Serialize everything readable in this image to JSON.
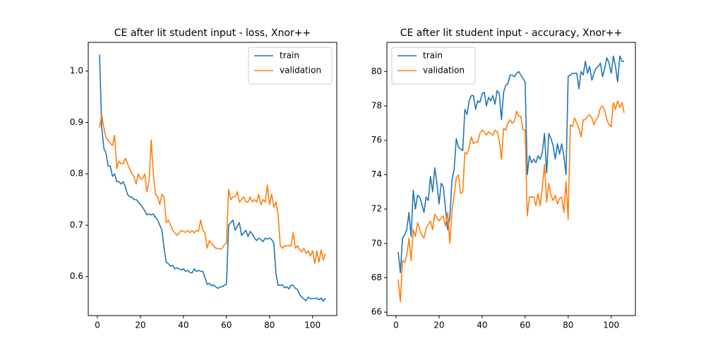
{
  "chart_data": [
    {
      "type": "line",
      "title": "CE after lit student input - loss, Xnor++",
      "legend": "upper right",
      "x": [
        1,
        2,
        3,
        4,
        5,
        6,
        7,
        8,
        9,
        10,
        11,
        12,
        13,
        14,
        15,
        16,
        17,
        18,
        19,
        20,
        21,
        22,
        23,
        24,
        25,
        26,
        27,
        28,
        29,
        30,
        31,
        32,
        33,
        34,
        35,
        36,
        37,
        38,
        39,
        40,
        41,
        42,
        43,
        44,
        45,
        46,
        47,
        48,
        49,
        50,
        51,
        52,
        53,
        54,
        55,
        56,
        57,
        58,
        59,
        60,
        61,
        62,
        63,
        64,
        65,
        66,
        67,
        68,
        69,
        70,
        71,
        72,
        73,
        74,
        75,
        76,
        77,
        78,
        79,
        80,
        81,
        82,
        83,
        84,
        85,
        86,
        87,
        88,
        89,
        90,
        91,
        92,
        93,
        94,
        95,
        96,
        97,
        98,
        99,
        100,
        101,
        102,
        103,
        104,
        105,
        106
      ],
      "series": [
        {
          "name": "train",
          "color": "#1f77b4",
          "values": [
            1.032,
            0.89,
            0.85,
            0.84,
            0.815,
            0.815,
            0.795,
            0.8,
            0.785,
            0.785,
            0.78,
            0.785,
            0.775,
            0.76,
            0.755,
            0.755,
            0.75,
            0.75,
            0.745,
            0.74,
            0.735,
            0.728,
            0.72,
            0.722,
            0.72,
            0.722,
            0.715,
            0.71,
            0.7,
            0.69,
            0.655,
            0.628,
            0.625,
            0.62,
            0.622,
            0.615,
            0.617,
            0.615,
            0.613,
            0.615,
            0.61,
            0.612,
            0.608,
            0.607,
            0.615,
            0.61,
            0.612,
            0.61,
            0.61,
            0.598,
            0.585,
            0.587,
            0.582,
            0.584,
            0.58,
            0.577,
            0.58,
            0.58,
            0.583,
            0.585,
            0.7,
            0.705,
            0.71,
            0.69,
            0.698,
            0.705,
            0.68,
            0.685,
            0.69,
            0.678,
            0.688,
            0.683,
            0.675,
            0.67,
            0.675,
            0.672,
            0.668,
            0.675,
            0.673,
            0.675,
            0.672,
            0.665,
            0.605,
            0.583,
            0.583,
            0.584,
            0.578,
            0.58,
            0.576,
            0.583,
            0.583,
            0.577,
            0.575,
            0.565,
            0.56,
            0.556,
            0.553,
            0.56,
            0.557,
            0.557,
            0.557,
            0.558,
            0.555,
            0.558,
            0.552,
            0.558
          ]
        },
        {
          "name": "validation",
          "color": "#ff7f0e",
          "values": [
            0.89,
            0.915,
            0.89,
            0.87,
            0.865,
            0.86,
            0.855,
            0.875,
            0.81,
            0.825,
            0.82,
            0.82,
            0.83,
            0.82,
            0.81,
            0.8,
            0.795,
            0.78,
            0.8,
            0.79,
            0.79,
            0.8,
            0.765,
            0.785,
            0.866,
            0.8,
            0.76,
            0.755,
            0.74,
            0.76,
            0.755,
            0.705,
            0.71,
            0.7,
            0.69,
            0.685,
            0.68,
            0.685,
            0.69,
            0.688,
            0.686,
            0.69,
            0.685,
            0.69,
            0.685,
            0.69,
            0.688,
            0.71,
            0.69,
            0.685,
            0.655,
            0.67,
            0.665,
            0.66,
            0.655,
            0.655,
            0.653,
            0.655,
            0.662,
            0.665,
            0.77,
            0.75,
            0.755,
            0.755,
            0.765,
            0.745,
            0.75,
            0.755,
            0.745,
            0.745,
            0.755,
            0.745,
            0.75,
            0.745,
            0.76,
            0.74,
            0.75,
            0.745,
            0.778,
            0.74,
            0.76,
            0.735,
            0.745,
            0.72,
            0.66,
            0.655,
            0.66,
            0.66,
            0.66,
            0.66,
            0.685,
            0.655,
            0.66,
            0.652,
            0.648,
            0.655,
            0.645,
            0.65,
            0.64,
            0.65,
            0.625,
            0.65,
            0.628,
            0.652,
            0.632,
            0.645
          ]
        }
      ],
      "xlim": [
        -4.25,
        111.25
      ],
      "ylim": [
        0.524,
        1.056
      ],
      "xticks": [
        0,
        20,
        40,
        60,
        80,
        100
      ],
      "yticks": [
        0.6,
        0.7,
        0.8,
        0.9,
        {
          "value": 1.0,
          "label": "1.0"
        }
      ]
    },
    {
      "type": "line",
      "title": "CE after lit student input - accuracy, Xnor++",
      "legend": "upper left",
      "x": [
        1,
        2,
        3,
        4,
        5,
        6,
        7,
        8,
        9,
        10,
        11,
        12,
        13,
        14,
        15,
        16,
        17,
        18,
        19,
        20,
        21,
        22,
        23,
        24,
        25,
        26,
        27,
        28,
        29,
        30,
        31,
        32,
        33,
        34,
        35,
        36,
        37,
        38,
        39,
        40,
        41,
        42,
        43,
        44,
        45,
        46,
        47,
        48,
        49,
        50,
        51,
        52,
        53,
        54,
        55,
        56,
        57,
        58,
        59,
        60,
        61,
        62,
        63,
        64,
        65,
        66,
        67,
        68,
        69,
        70,
        71,
        72,
        73,
        74,
        75,
        76,
        77,
        78,
        79,
        80,
        81,
        82,
        83,
        84,
        85,
        86,
        87,
        88,
        89,
        90,
        91,
        92,
        93,
        94,
        95,
        96,
        97,
        98,
        99,
        100,
        101,
        102,
        103,
        104,
        105,
        106
      ],
      "series": [
        {
          "name": "train",
          "color": "#1f77b4",
          "values": [
            69.5,
            68.3,
            70.3,
            70.5,
            70.8,
            71.8,
            70.4,
            73.1,
            72.0,
            72.8,
            72.7,
            72.3,
            71.8,
            72.7,
            72.5,
            73.9,
            73.0,
            74.4,
            73.5,
            72.3,
            73.5,
            73.3,
            72.0,
            70.8,
            71.5,
            73.7,
            74.3,
            76.1,
            75.6,
            75.5,
            75.4,
            77.8,
            77.5,
            78.3,
            78.6,
            78.6,
            77.8,
            78.3,
            78.2,
            78.7,
            78.8,
            78.0,
            78.5,
            78.3,
            78.6,
            78.1,
            78.9,
            78.7,
            77.2,
            78.8,
            79.2,
            79.3,
            79.8,
            79.8,
            79.7,
            79.9,
            80.0,
            79.8,
            79.6,
            79.4,
            74.0,
            75.1,
            74.7,
            74.9,
            74.7,
            75.1,
            74.9,
            75.3,
            76.4,
            74.1,
            76.4,
            76.1,
            75.7,
            74.9,
            75.8,
            75.2,
            75.8,
            75.1,
            74.0,
            79.7,
            79.8,
            79.9,
            79.9,
            79.9,
            79.0,
            80.0,
            79.8,
            80.6,
            79.9,
            80.3,
            79.5,
            79.9,
            80.2,
            80.3,
            80.5,
            79.7,
            80.2,
            80.8,
            80.5,
            79.9,
            80.9,
            80.3,
            79.4,
            80.9,
            80.6,
            80.6
          ]
        },
        {
          "name": "validation",
          "color": "#ff7f0e",
          "values": [
            67.9,
            66.6,
            69.0,
            68.9,
            69.3,
            70.3,
            69.0,
            70.8,
            70.4,
            71.2,
            70.8,
            70.5,
            70.3,
            70.9,
            71.1,
            71.3,
            70.8,
            71.7,
            71.5,
            71.3,
            71.5,
            71.6,
            71.0,
            71.8,
            70.0,
            71.9,
            72.8,
            73.8,
            74.0,
            72.9,
            73.0,
            75.3,
            75.2,
            75.6,
            76.2,
            75.8,
            75.9,
            75.9,
            76.4,
            76.6,
            76.5,
            76.3,
            76.5,
            76.4,
            76.3,
            76.6,
            76.5,
            76.0,
            74.9,
            76.7,
            76.6,
            77.0,
            77.2,
            77.0,
            77.1,
            77.7,
            77.4,
            77.4,
            76.6,
            76.6,
            71.6,
            72.7,
            72.7,
            72.7,
            72.2,
            72.9,
            72.2,
            73.3,
            74.6,
            72.4,
            73.5,
            72.8,
            72.5,
            72.8,
            72.3,
            72.6,
            72.7,
            71.8,
            73.6,
            71.4,
            76.9,
            76.8,
            77.3,
            77.0,
            76.7,
            76.2,
            77.2,
            77.2,
            77.4,
            77.5,
            77.3,
            76.9,
            77.2,
            77.4,
            77.9,
            78.0,
            77.7,
            77.2,
            76.9,
            76.8,
            78.2,
            77.8,
            78.3,
            77.9,
            78.2,
            77.6
          ]
        }
      ],
      "xlim": [
        -4.25,
        111.25
      ],
      "ylim": [
        65.8,
        81.7
      ],
      "xticks": [
        0,
        20,
        40,
        60,
        80,
        100
      ],
      "yticks": [
        66,
        68,
        70,
        72,
        74,
        76,
        78,
        80
      ]
    }
  ]
}
